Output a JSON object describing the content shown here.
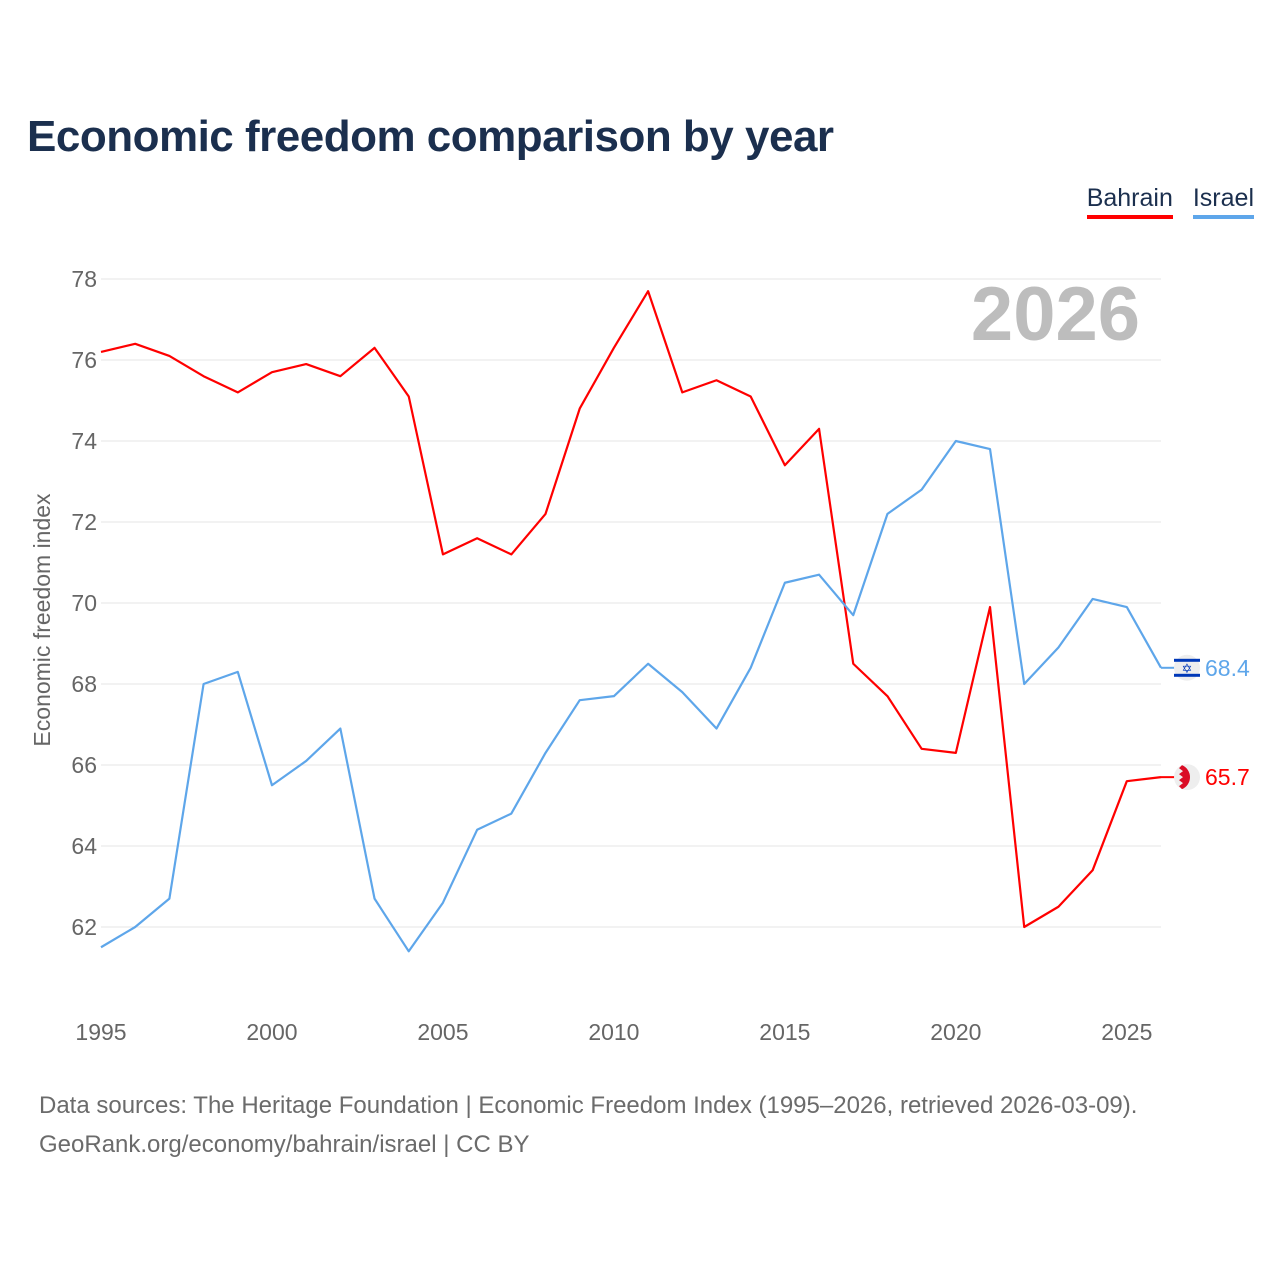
{
  "chart_data": {
    "type": "line",
    "title": "Economic freedom comparison by year",
    "xlabel": "",
    "ylabel": "Economic freedom index",
    "watermark_year": "2026",
    "x": [
      1995,
      1996,
      1997,
      1998,
      1999,
      2000,
      2001,
      2002,
      2003,
      2004,
      2005,
      2006,
      2007,
      2008,
      2009,
      2010,
      2011,
      2012,
      2013,
      2014,
      2015,
      2016,
      2017,
      2018,
      2019,
      2020,
      2021,
      2022,
      2023,
      2024,
      2025,
      2026
    ],
    "xticks": [
      1995,
      2000,
      2005,
      2010,
      2015,
      2020,
      2025
    ],
    "yticks": [
      62,
      64,
      66,
      68,
      70,
      72,
      74,
      76,
      78
    ],
    "xlim": [
      1995,
      2026
    ],
    "ylim": [
      60.5,
      78
    ],
    "grid": true,
    "legend_position": "top-right",
    "series": [
      {
        "name": "Bahrain",
        "color": "#ff0000",
        "end_label": "65.7",
        "flag": "bahrain-flag",
        "values": [
          76.2,
          76.4,
          76.1,
          75.6,
          75.2,
          75.7,
          75.9,
          75.6,
          76.3,
          75.1,
          71.2,
          71.6,
          71.2,
          72.2,
          74.8,
          76.3,
          77.7,
          75.2,
          75.5,
          75.1,
          73.4,
          74.3,
          68.5,
          67.7,
          66.4,
          66.3,
          69.9,
          62.0,
          62.5,
          63.4,
          65.6,
          65.7
        ]
      },
      {
        "name": "Israel",
        "color": "#5ea6ea",
        "end_label": "68.4",
        "flag": "israel-flag",
        "values": [
          61.5,
          62.0,
          62.7,
          68.0,
          68.3,
          65.5,
          66.1,
          66.9,
          62.7,
          61.4,
          62.6,
          64.4,
          64.8,
          66.3,
          67.6,
          67.7,
          68.5,
          67.8,
          66.9,
          68.4,
          70.5,
          70.7,
          69.7,
          72.2,
          72.8,
          74.0,
          73.8,
          68.0,
          68.9,
          70.1,
          69.9,
          68.4
        ]
      }
    ]
  },
  "footer": {
    "line1": "Data sources: The Heritage Foundation | Economic Freedom Index (1995–2026, retrieved 2026-03-09).",
    "line2": "GeoRank.org/economy/bahrain/israel | CC BY"
  }
}
